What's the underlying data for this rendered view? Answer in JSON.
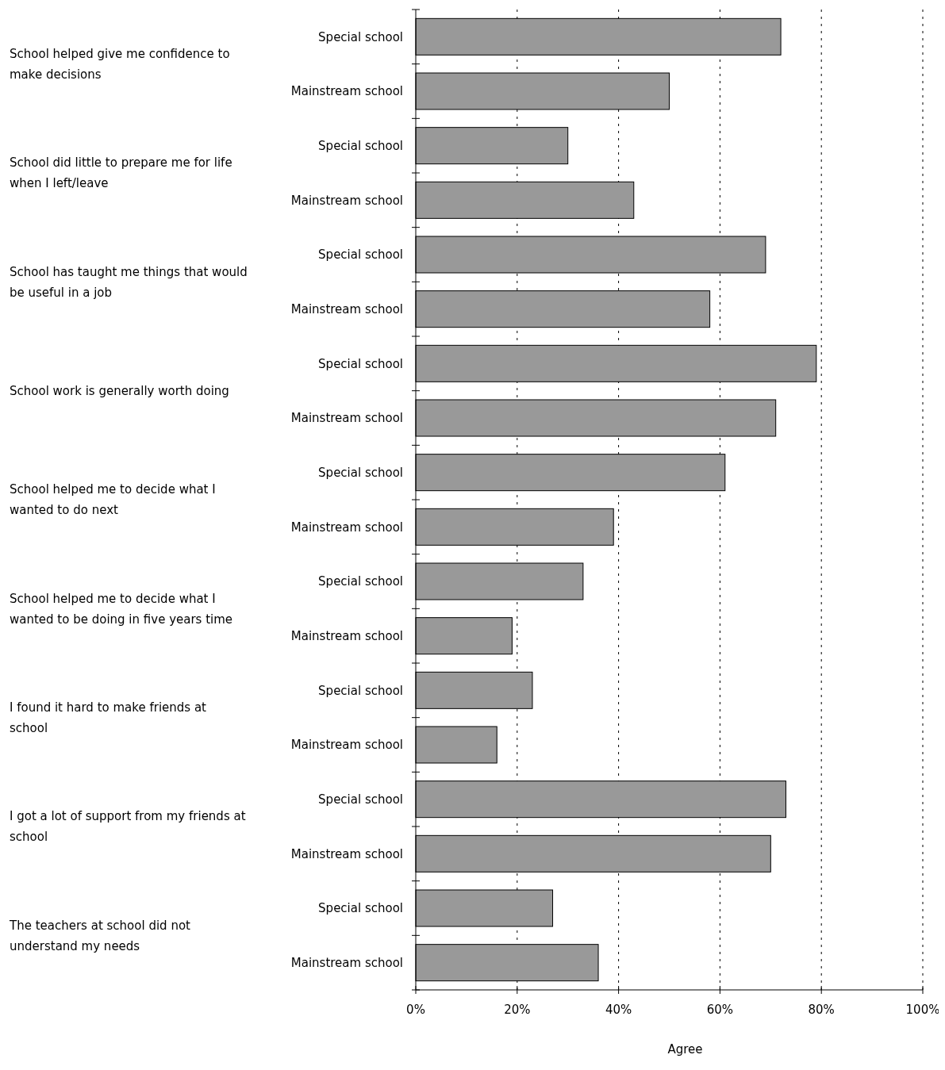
{
  "chart_data": {
    "type": "bar",
    "orientation": "horizontal",
    "xlabel": "Agree",
    "categories": [
      "Special school",
      "Mainstream school",
      "Special school",
      "Mainstream school",
      "Special school",
      "Mainstream school",
      "Special school",
      "Mainstream school",
      "Special school",
      "Mainstream school",
      "Special school",
      "Mainstream school",
      "Special school",
      "Mainstream school",
      "Special school",
      "Mainstream school",
      "Special school",
      "Mainstream school"
    ],
    "values": [
      72,
      50,
      30,
      43,
      69,
      58,
      79,
      71,
      61,
      39,
      33,
      19,
      23,
      16,
      73,
      70,
      27,
      36
    ],
    "color": "#999999",
    "annotations": [
      "School helped give me confidence to make decisions",
      "School did little to prepare me for life when I left/leave",
      "School has taught me things that would be useful in a job",
      "School work is generally worth doing",
      "School helped me to decide what I wanted to do next",
      "School helped me to decide what I wanted to be doing in five years time",
      "I found it hard to make friends at school",
      "I got a lot of support from my friends at school",
      "The teachers at school did not understand my needs"
    ],
    "xlim": [
      0,
      100
    ],
    "xticks": [
      {
        "value": 0,
        "label": "0%"
      },
      {
        "value": 20,
        "label": "20%"
      },
      {
        "value": 40,
        "label": "40%"
      },
      {
        "value": 60,
        "label": "60%"
      },
      {
        "value": 80,
        "label": "80%"
      },
      {
        "value": 100,
        "label": "100%"
      }
    ],
    "grid": "x"
  }
}
